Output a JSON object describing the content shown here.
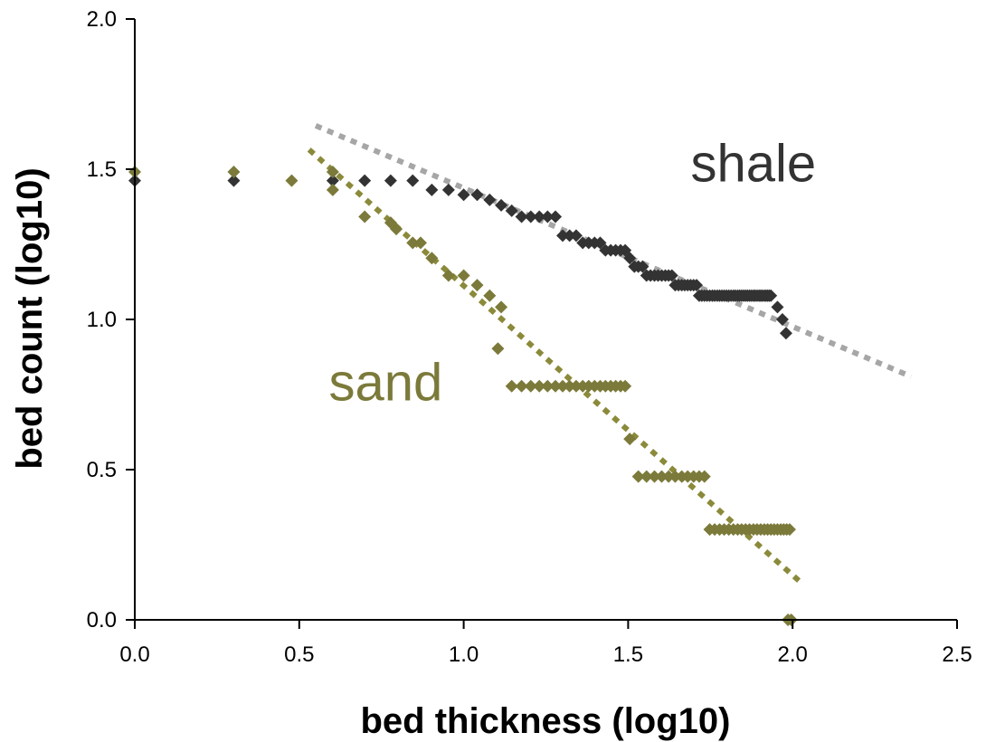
{
  "chart_data": {
    "type": "scatter",
    "title": "",
    "xlabel": "bed thickness (log10)",
    "ylabel": "bed count (log10)",
    "xlim": [
      0,
      2.5
    ],
    "ylim": [
      0,
      2
    ],
    "xticks": [
      "0.0",
      "0.5",
      "1.0",
      "1.5",
      "2.0",
      "2.5"
    ],
    "yticks": [
      "0.0",
      "0.5",
      "1.0",
      "1.5",
      "2.0"
    ],
    "grid": false,
    "legend": "none",
    "annotations": [
      {
        "text": "shale",
        "x": 1.69,
        "y": 1.46,
        "color": "#333333"
      },
      {
        "text": "sand",
        "x": 0.59,
        "y": 0.73,
        "color": "#7b7a3a"
      }
    ],
    "series": [
      {
        "name": "shale",
        "color": "#333333",
        "marker": "diamond",
        "points": [
          [
            0.0,
            1.462
          ],
          [
            0.301,
            1.462
          ],
          [
            0.602,
            1.462
          ],
          [
            0.699,
            1.462
          ],
          [
            0.778,
            1.462
          ],
          [
            0.845,
            1.462
          ],
          [
            0.903,
            1.431
          ],
          [
            0.954,
            1.431
          ],
          [
            1.0,
            1.415
          ],
          [
            1.041,
            1.415
          ],
          [
            1.079,
            1.398
          ],
          [
            1.114,
            1.38
          ],
          [
            1.146,
            1.362
          ],
          [
            1.176,
            1.342
          ],
          [
            1.204,
            1.342
          ],
          [
            1.23,
            1.342
          ],
          [
            1.255,
            1.342
          ],
          [
            1.279,
            1.342
          ],
          [
            1.301,
            1.279
          ],
          [
            1.322,
            1.279
          ],
          [
            1.342,
            1.279
          ],
          [
            1.362,
            1.255
          ],
          [
            1.38,
            1.255
          ],
          [
            1.398,
            1.255
          ],
          [
            1.415,
            1.255
          ],
          [
            1.431,
            1.23
          ],
          [
            1.447,
            1.23
          ],
          [
            1.462,
            1.23
          ],
          [
            1.477,
            1.23
          ],
          [
            1.491,
            1.23
          ],
          [
            1.505,
            1.204
          ],
          [
            1.519,
            1.176
          ],
          [
            1.531,
            1.176
          ],
          [
            1.544,
            1.176
          ],
          [
            1.556,
            1.146
          ],
          [
            1.568,
            1.146
          ],
          [
            1.58,
            1.146
          ],
          [
            1.591,
            1.146
          ],
          [
            1.602,
            1.146
          ],
          [
            1.613,
            1.146
          ],
          [
            1.623,
            1.146
          ],
          [
            1.633,
            1.146
          ],
          [
            1.643,
            1.114
          ],
          [
            1.653,
            1.114
          ],
          [
            1.663,
            1.114
          ],
          [
            1.672,
            1.114
          ],
          [
            1.681,
            1.114
          ],
          [
            1.69,
            1.114
          ],
          [
            1.699,
            1.114
          ],
          [
            1.708,
            1.114
          ],
          [
            1.716,
            1.079
          ],
          [
            1.724,
            1.079
          ],
          [
            1.732,
            1.079
          ],
          [
            1.74,
            1.079
          ],
          [
            1.748,
            1.079
          ],
          [
            1.756,
            1.079
          ],
          [
            1.763,
            1.079
          ],
          [
            1.771,
            1.079
          ],
          [
            1.778,
            1.079
          ],
          [
            1.785,
            1.079
          ],
          [
            1.792,
            1.079
          ],
          [
            1.799,
            1.079
          ],
          [
            1.806,
            1.079
          ],
          [
            1.813,
            1.079
          ],
          [
            1.82,
            1.079
          ],
          [
            1.826,
            1.079
          ],
          [
            1.833,
            1.079
          ],
          [
            1.839,
            1.079
          ],
          [
            1.845,
            1.079
          ],
          [
            1.851,
            1.079
          ],
          [
            1.857,
            1.079
          ],
          [
            1.863,
            1.079
          ],
          [
            1.869,
            1.079
          ],
          [
            1.875,
            1.079
          ],
          [
            1.881,
            1.079
          ],
          [
            1.886,
            1.079
          ],
          [
            1.892,
            1.079
          ],
          [
            1.898,
            1.079
          ],
          [
            1.903,
            1.079
          ],
          [
            1.908,
            1.079
          ],
          [
            1.914,
            1.079
          ],
          [
            1.919,
            1.079
          ],
          [
            1.924,
            1.079
          ],
          [
            1.929,
            1.079
          ],
          [
            1.934,
            1.079
          ],
          [
            1.954,
            1.041
          ],
          [
            1.969,
            1.0
          ],
          [
            1.98,
            0.954
          ]
        ]
      },
      {
        "name": "sand",
        "color": "#7b7a3a",
        "marker": "diamond",
        "points": [
          [
            0.0,
            1.491
          ],
          [
            0.301,
            1.491
          ],
          [
            0.477,
            1.462
          ],
          [
            0.602,
            1.491
          ],
          [
            0.602,
            1.431
          ],
          [
            0.699,
            1.342
          ],
          [
            0.778,
            1.322
          ],
          [
            0.795,
            1.301
          ],
          [
            0.845,
            1.255
          ],
          [
            0.869,
            1.255
          ],
          [
            0.903,
            1.204
          ],
          [
            0.954,
            1.146
          ],
          [
            1.0,
            1.146
          ],
          [
            1.041,
            1.114
          ],
          [
            1.079,
            1.079
          ],
          [
            1.114,
            1.041
          ],
          [
            1.104,
            0.903
          ],
          [
            1.146,
            0.778
          ],
          [
            1.176,
            0.778
          ],
          [
            1.204,
            0.778
          ],
          [
            1.23,
            0.778
          ],
          [
            1.255,
            0.778
          ],
          [
            1.279,
            0.778
          ],
          [
            1.301,
            0.778
          ],
          [
            1.322,
            0.778
          ],
          [
            1.342,
            0.778
          ],
          [
            1.362,
            0.778
          ],
          [
            1.38,
            0.778
          ],
          [
            1.398,
            0.778
          ],
          [
            1.415,
            0.778
          ],
          [
            1.431,
            0.778
          ],
          [
            1.447,
            0.778
          ],
          [
            1.462,
            0.778
          ],
          [
            1.477,
            0.778
          ],
          [
            1.491,
            0.778
          ],
          [
            1.505,
            0.602
          ],
          [
            1.531,
            0.477
          ],
          [
            1.556,
            0.477
          ],
          [
            1.58,
            0.477
          ],
          [
            1.602,
            0.477
          ],
          [
            1.623,
            0.477
          ],
          [
            1.643,
            0.477
          ],
          [
            1.663,
            0.477
          ],
          [
            1.681,
            0.477
          ],
          [
            1.699,
            0.477
          ],
          [
            1.716,
            0.477
          ],
          [
            1.732,
            0.477
          ],
          [
            1.748,
            0.301
          ],
          [
            1.763,
            0.301
          ],
          [
            1.778,
            0.301
          ],
          [
            1.792,
            0.301
          ],
          [
            1.806,
            0.301
          ],
          [
            1.82,
            0.301
          ],
          [
            1.833,
            0.301
          ],
          [
            1.845,
            0.301
          ],
          [
            1.857,
            0.301
          ],
          [
            1.869,
            0.301
          ],
          [
            1.881,
            0.301
          ],
          [
            1.892,
            0.301
          ],
          [
            1.903,
            0.301
          ],
          [
            1.914,
            0.301
          ],
          [
            1.924,
            0.301
          ],
          [
            1.934,
            0.301
          ],
          [
            1.944,
            0.301
          ],
          [
            1.954,
            0.301
          ],
          [
            1.964,
            0.301
          ],
          [
            1.973,
            0.301
          ],
          [
            1.982,
            0.301
          ],
          [
            1.991,
            0.301
          ],
          [
            1.986,
            0.0
          ],
          [
            1.996,
            0.0
          ]
        ]
      }
    ],
    "trendlines": [
      {
        "series": "shale",
        "color": "#a6a6a6",
        "from": [
          0.55,
          1.645
        ],
        "to": [
          2.36,
          0.81
        ]
      },
      {
        "series": "sand",
        "color": "#8a8a3a",
        "from": [
          0.53,
          1.565
        ],
        "to": [
          2.03,
          0.12
        ]
      }
    ]
  }
}
